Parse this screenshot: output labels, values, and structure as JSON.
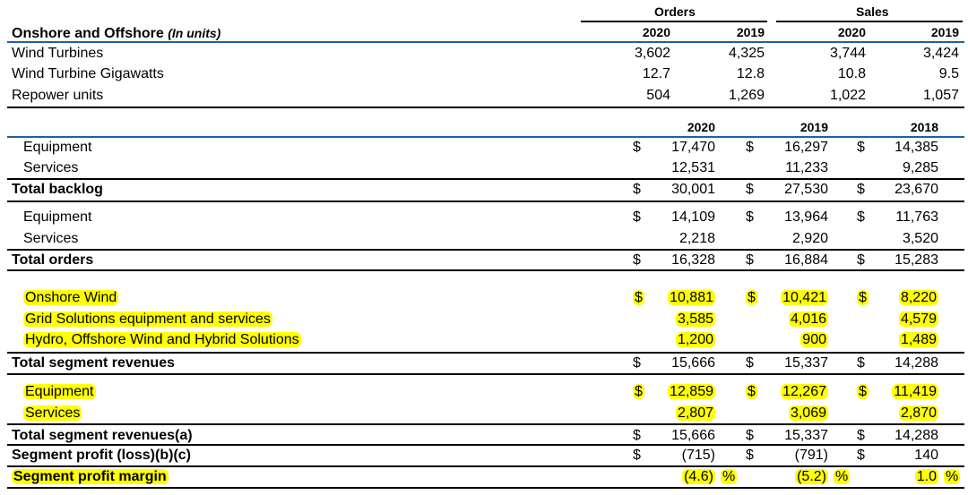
{
  "units_table": {
    "title": "Onshore and Offshore",
    "subtitle": "(In units)",
    "group_orders": "Orders",
    "group_sales": "Sales",
    "years": [
      "2020",
      "2019",
      "2020",
      "2019"
    ],
    "rows": [
      {
        "label": "Wind Turbines",
        "values": [
          "3,602",
          "4,325",
          "3,744",
          "3,424"
        ]
      },
      {
        "label": "Wind Turbine Gigawatts",
        "values": [
          "12.7",
          "12.8",
          "10.8",
          "9.5"
        ]
      },
      {
        "label": "Repower units",
        "values": [
          "504",
          "1,269",
          "1,022",
          "1,057"
        ]
      }
    ]
  },
  "fin_table": {
    "years": [
      "2020",
      "2019",
      "2018"
    ],
    "currency": "$",
    "pct": "%",
    "rows": [
      {
        "label": "Equipment",
        "values": [
          "17,470",
          "16,297",
          "14,385"
        ],
        "dollar": true,
        "bold": false,
        "hl": false
      },
      {
        "label": "Services",
        "values": [
          "12,531",
          "11,233",
          "9,285"
        ],
        "dollar": false,
        "bold": false,
        "hl": false
      },
      {
        "label": "Total backlog",
        "values": [
          "30,001",
          "27,530",
          "23,670"
        ],
        "dollar": true,
        "bold": true,
        "hl": false
      },
      {
        "label": "Equipment",
        "values": [
          "14,109",
          "13,964",
          "11,763"
        ],
        "dollar": true,
        "bold": false,
        "hl": false
      },
      {
        "label": "Services",
        "values": [
          "2,218",
          "2,920",
          "3,520"
        ],
        "dollar": false,
        "bold": false,
        "hl": false
      },
      {
        "label": "Total orders",
        "values": [
          "16,328",
          "16,884",
          "15,283"
        ],
        "dollar": true,
        "bold": true,
        "hl": false
      },
      {
        "label": "Onshore Wind",
        "values": [
          "10,881",
          "10,421",
          "8,220"
        ],
        "dollar": true,
        "bold": false,
        "hl": true
      },
      {
        "label": "Grid Solutions equipment and services",
        "values": [
          "3,585",
          "4,016",
          "4,579"
        ],
        "dollar": false,
        "bold": false,
        "hl": true
      },
      {
        "label": "Hydro, Offshore Wind and Hybrid Solutions",
        "values": [
          "1,200",
          "900",
          "1,489"
        ],
        "dollar": false,
        "bold": false,
        "hl": true
      },
      {
        "label": "Total segment revenues",
        "values": [
          "15,666",
          "15,337",
          "14,288"
        ],
        "dollar": true,
        "bold": true,
        "hl": false
      },
      {
        "label": "Equipment",
        "values": [
          "12,859",
          "12,267",
          "11,419"
        ],
        "dollar": true,
        "bold": false,
        "hl": true
      },
      {
        "label": "Services",
        "values": [
          "2,807",
          "3,069",
          "2,870"
        ],
        "dollar": false,
        "bold": false,
        "hl": true
      },
      {
        "label": "Total segment revenues(a)",
        "values": [
          "15,666",
          "15,337",
          "14,288"
        ],
        "dollar": true,
        "bold": true,
        "hl": false
      },
      {
        "label": "Segment profit (loss)(b)(c)",
        "values": [
          "(715)",
          "(791)",
          "140"
        ],
        "dollar": true,
        "bold": true,
        "hl": false
      },
      {
        "label": "Segment profit margin",
        "values": [
          "(4.6)",
          "(5.2)",
          "1.0"
        ],
        "dollar": false,
        "bold": true,
        "hl": true,
        "pct": true
      }
    ]
  }
}
